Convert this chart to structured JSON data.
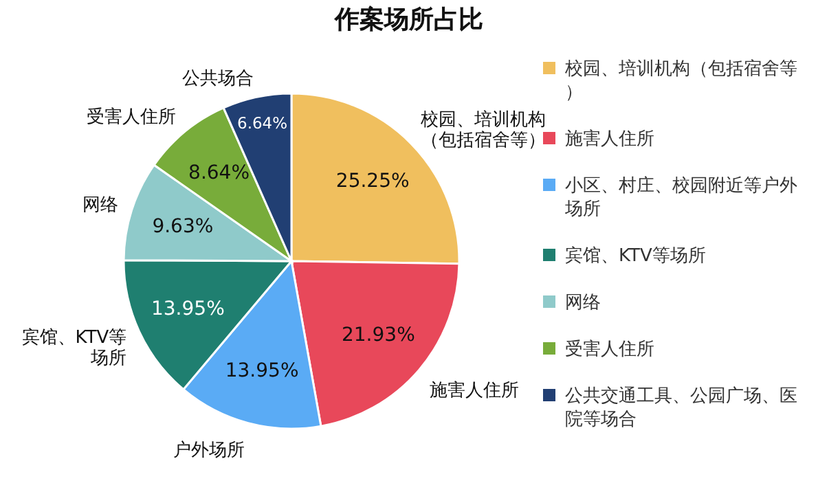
{
  "chart_data": {
    "type": "pie",
    "title": "作案场所占比",
    "categories": [
      "校园、培训机构（包括宿舍等）",
      "施害人住所",
      "小区、村庄、校园附近等户外场所",
      "宾馆、KTV等场所",
      "网络",
      "受害人住所",
      "公共交通工具、公园广场、医院等场合"
    ],
    "values": [
      25.25,
      21.93,
      13.95,
      13.95,
      9.63,
      8.64,
      6.64
    ],
    "value_labels": [
      "25.25%",
      "21.93%",
      "13.95%",
      "13.95%",
      "9.63%",
      "8.64%",
      "6.64%"
    ],
    "colors": [
      "#f0bf5e",
      "#e8485a",
      "#5aabf5",
      "#1f7f70",
      "#8fcaca",
      "#78ac3a",
      "#213f73"
    ],
    "annotations": [
      "校园、培训机构（包括宿舍等）",
      "施害人住所",
      "户外场所",
      "宾馆、KTV等场所",
      "网络",
      "受害人住所",
      "公共场合"
    ],
    "legend": "right"
  }
}
